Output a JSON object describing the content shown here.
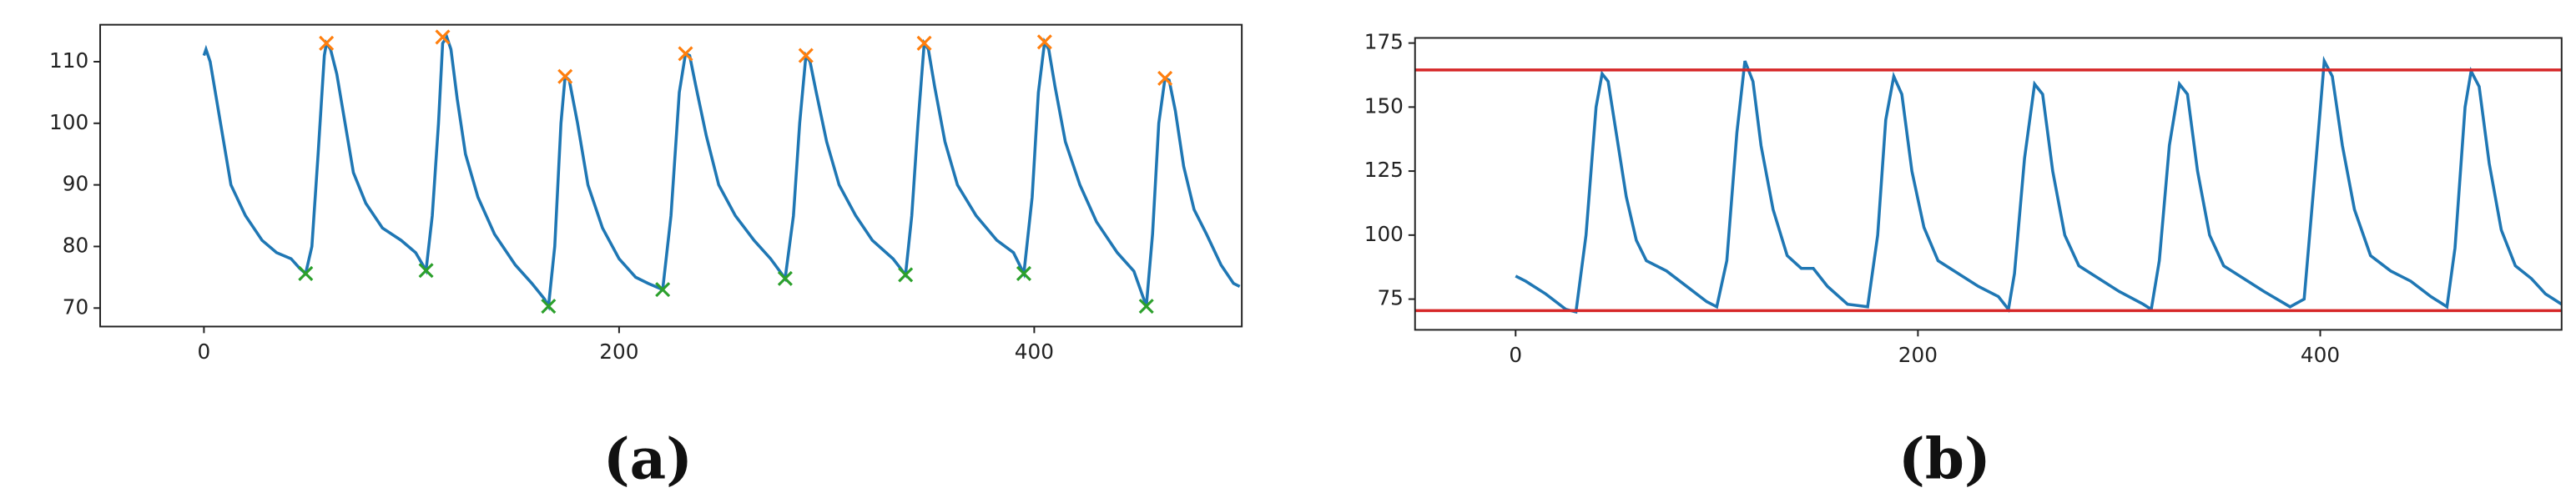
{
  "chart_data": [
    {
      "type": "line",
      "label": "(a)",
      "xlim": [
        -50,
        500
      ],
      "ylim": [
        67,
        116
      ],
      "xticks": [
        0,
        200,
        400
      ],
      "yticks": [
        70,
        80,
        90,
        100,
        110
      ],
      "series": [
        {
          "color": "#1f77b4",
          "x": [
            0,
            1,
            3,
            8,
            13,
            20,
            28,
            35,
            42,
            46,
            49,
            52,
            55,
            58,
            59,
            61,
            64,
            68,
            72,
            78,
            86,
            95,
            102,
            107,
            110,
            113,
            115,
            117,
            119,
            122,
            126,
            132,
            140,
            150,
            158,
            164,
            166,
            169,
            172,
            174,
            176,
            180,
            185,
            192,
            200,
            208,
            214,
            221,
            225,
            229,
            232,
            234,
            237,
            242,
            248,
            256,
            265,
            273,
            280,
            284,
            287,
            290,
            292,
            295,
            300,
            306,
            314,
            322,
            332,
            338,
            341,
            344,
            347,
            349,
            352,
            357,
            363,
            372,
            382,
            390,
            395,
            399,
            402,
            405,
            407,
            410,
            415,
            422,
            430,
            440,
            448,
            454,
            457,
            460,
            463,
            465,
            468,
            472,
            477,
            483,
            490,
            496,
            499
          ],
          "values": [
            111,
            112,
            110,
            100,
            90,
            85,
            81,
            79,
            78,
            76.5,
            75.6,
            80,
            95,
            111,
            113,
            112,
            108,
            100,
            92,
            87,
            83,
            81,
            79,
            76.1,
            85,
            100,
            113,
            114,
            112,
            104,
            95,
            88,
            82,
            77,
            74,
            71.5,
            70.3,
            80,
            100,
            107.6,
            107,
            100,
            90,
            83,
            78,
            75,
            74,
            73,
            85,
            105,
            111.3,
            111,
            106,
            98,
            90,
            85,
            81,
            78,
            74.8,
            85,
            100,
            111,
            110,
            105,
            97,
            90,
            85,
            81,
            78,
            75.4,
            85,
            100,
            113,
            112,
            106,
            97,
            90,
            85,
            81,
            79,
            75.6,
            88,
            105,
            113.2,
            112,
            106,
            97,
            90,
            84,
            79,
            76,
            70.3,
            82,
            100,
            107.3,
            107,
            102,
            93,
            86,
            82,
            77,
            74,
            73.5
          ]
        }
      ],
      "markers": [
        {
          "color": "#ff7f0e",
          "x": [
            59,
            115,
            174,
            232,
            290,
            347,
            405,
            463
          ],
          "values": [
            113,
            114,
            107.6,
            111.3,
            111,
            113,
            113.2,
            107.3
          ]
        },
        {
          "color": "#2ca02c",
          "x": [
            49,
            107,
            166,
            221,
            280,
            338,
            395,
            454
          ],
          "values": [
            75.6,
            76.1,
            70.3,
            73,
            74.8,
            75.4,
            75.6,
            70.3
          ]
        }
      ]
    },
    {
      "type": "line",
      "label": "(b)",
      "xlim": [
        -50,
        520
      ],
      "ylim": [
        63,
        177
      ],
      "xticks": [
        0,
        200,
        400
      ],
      "yticks": [
        75,
        100,
        125,
        150,
        175
      ],
      "series": [
        {
          "color": "#1f77b4",
          "x": [
            0,
            5,
            15,
            25,
            30,
            35,
            40,
            43,
            46,
            50,
            55,
            60,
            65,
            75,
            85,
            95,
            100,
            105,
            110,
            114,
            118,
            122,
            128,
            135,
            142,
            148,
            155,
            165,
            175,
            180,
            184,
            188,
            192,
            197,
            203,
            210,
            220,
            230,
            240,
            245,
            248,
            253,
            258,
            262,
            267,
            273,
            280,
            290,
            300,
            312,
            316,
            320,
            325,
            330,
            334,
            339,
            345,
            352,
            362,
            372,
            385,
            392,
            398,
            402,
            406,
            411,
            417,
            425,
            435,
            445,
            455,
            463,
            467,
            472,
            475,
            479,
            484,
            490,
            497,
            505,
            512,
            520
          ],
          "values": [
            84,
            82,
            77,
            71,
            70,
            100,
            150,
            163,
            160,
            140,
            115,
            98,
            90,
            86,
            80,
            74,
            72,
            90,
            140,
            168,
            160,
            135,
            110,
            92,
            87,
            87,
            80,
            73,
            72,
            100,
            145,
            162,
            155,
            125,
            103,
            90,
            85,
            80,
            76,
            71,
            85,
            130,
            159,
            155,
            125,
            100,
            88,
            83,
            78,
            73,
            71,
            90,
            135,
            159,
            155,
            125,
            100,
            88,
            83,
            78,
            72,
            75,
            130,
            168,
            162,
            135,
            110,
            92,
            86,
            82,
            76,
            72,
            95,
            150,
            164,
            158,
            128,
            102,
            88,
            83,
            77,
            73
          ]
        }
      ],
      "hlines": [
        {
          "value": 164.5,
          "color": "#d62728"
        },
        {
          "value": 70.5,
          "color": "#d62728"
        }
      ]
    }
  ]
}
